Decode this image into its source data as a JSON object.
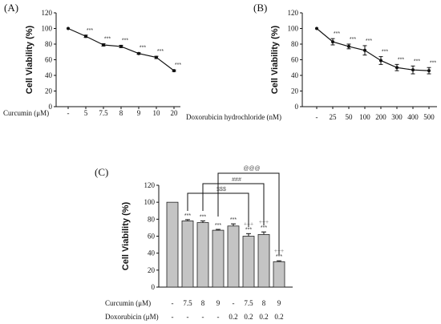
{
  "chart_data": [
    {
      "type": "line",
      "panel_label": "(A)",
      "ylabel": "Cell Viability (%)",
      "ylim": [
        0,
        120
      ],
      "yticks": [
        "0",
        "20",
        "40",
        "60",
        "80",
        "100",
        "120"
      ],
      "xlabel": "Curcumin (μM)",
      "categories": [
        "-",
        "5",
        "7.5",
        "8",
        "9",
        "10",
        "20"
      ],
      "values": [
        100,
        90,
        79,
        77,
        68,
        63,
        46
      ],
      "errors": [
        0,
        1.5,
        1.5,
        1.5,
        1,
        1.5,
        1
      ],
      "annotations": [
        "",
        "***",
        "***",
        "***",
        "***",
        "***",
        "***"
      ]
    },
    {
      "type": "line",
      "panel_label": "(B)",
      "ylabel": "Cell Viability (%)",
      "ylim": [
        0,
        120
      ],
      "yticks": [
        "0",
        "20",
        "40",
        "60",
        "80",
        "100",
        "120"
      ],
      "xlabel": "Doxorubicin hydrochloride (nM)",
      "categories": [
        "-",
        "25",
        "50",
        "100",
        "200",
        "300",
        "400",
        "500"
      ],
      "values": [
        100,
        83,
        77,
        72,
        59,
        50,
        47,
        46
      ],
      "errors": [
        0,
        4,
        3,
        6,
        5,
        4,
        5,
        4
      ],
      "annotations": [
        "",
        "***",
        "***",
        "***",
        "***",
        "***",
        "***",
        "***"
      ]
    },
    {
      "type": "bar",
      "panel_label": "(C)",
      "ylabel": "Cell Viability (%)",
      "ylim": [
        0,
        120
      ],
      "yticks": [
        "0",
        "20",
        "40",
        "60",
        "80",
        "100",
        "120"
      ],
      "rows": [
        {
          "label": "Curcumin (μM)",
          "values": [
            "-",
            "7.5",
            "8",
            "9",
            "-",
            "7.5",
            "8",
            "9"
          ]
        },
        {
          "label": "Doxorubicin (μM)",
          "values": [
            "-",
            "-",
            "-",
            "-",
            "0.2",
            "0.2",
            "0.2",
            "0.2"
          ]
        }
      ],
      "values": [
        100,
        78,
        76,
        67,
        72,
        60,
        62,
        30
      ],
      "errors": [
        0,
        1.5,
        2,
        1,
        2.5,
        3,
        3,
        1
      ],
      "annotations": [
        "",
        "***",
        "***",
        "***",
        "***",
        "***",
        "***",
        "***"
      ],
      "annotations_extra": [
        "",
        "",
        "",
        "",
        "",
        "+++",
        "+++",
        "+++"
      ],
      "brackets": [
        {
          "label": "$$$",
          "from": 1,
          "to": 5
        },
        {
          "label": "###",
          "from": 2,
          "to": 6
        },
        {
          "label": "@@@",
          "from": 3,
          "to": 7
        }
      ]
    }
  ]
}
